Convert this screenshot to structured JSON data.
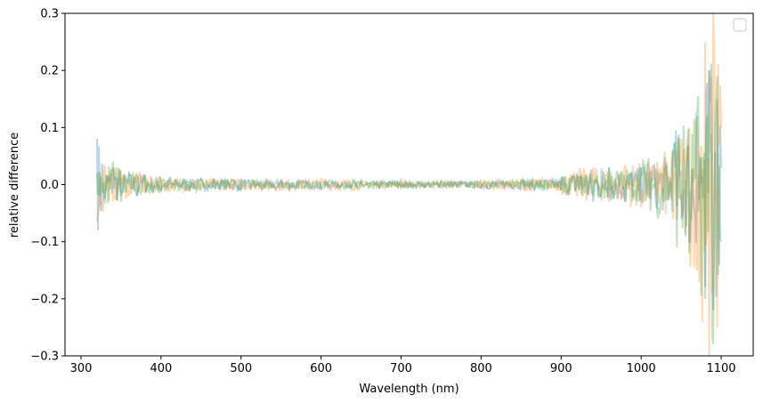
{
  "chart_data": {
    "type": "line",
    "title": "",
    "xlabel": "Wavelength (nm)",
    "ylabel": "relative difference",
    "xlim": [
      280,
      1140
    ],
    "ylim": [
      -0.3,
      0.3
    ],
    "x_ticks": [
      300,
      400,
      500,
      600,
      700,
      800,
      900,
      1000,
      1100
    ],
    "y_ticks": [
      -0.3,
      -0.2,
      -0.1,
      0.0,
      0.1,
      0.2,
      0.3
    ],
    "x_tick_labels": [
      "300",
      "400",
      "500",
      "600",
      "700",
      "800",
      "900",
      "1000",
      "1100"
    ],
    "y_tick_labels": [
      "−0.3",
      "−0.2",
      "−0.1",
      "0.0",
      "0.1",
      "0.2",
      "0.3"
    ],
    "grid": false,
    "legend": {
      "placement": "top-right",
      "entries": []
    },
    "series": [
      {
        "color": "#1f77b4",
        "opacity": 0.3,
        "x": [
          320,
          330,
          340,
          350,
          360,
          370,
          380,
          400,
          450,
          500,
          550,
          600,
          650,
          700,
          750,
          800,
          850,
          900,
          920,
          940,
          960,
          980,
          1000,
          1020,
          1040,
          1060,
          1070,
          1080,
          1085,
          1090,
          1095,
          1100
        ],
        "y": [
          0.08,
          -0.03,
          0.03,
          -0.02,
          0.02,
          -0.02,
          0.015,
          -0.01,
          0.01,
          -0.008,
          0.008,
          -0.006,
          0.006,
          -0.005,
          0.005,
          -0.006,
          0.008,
          -0.01,
          0.02,
          -0.03,
          0.03,
          -0.03,
          0.03,
          -0.04,
          0.05,
          -0.1,
          0.12,
          -0.18,
          0.2,
          -0.22,
          0.15,
          0.03
        ]
      },
      {
        "color": "#ff7f0e",
        "opacity": 0.3,
        "x": [
          320,
          330,
          340,
          350,
          360,
          370,
          380,
          400,
          450,
          500,
          550,
          600,
          650,
          700,
          750,
          800,
          850,
          900,
          920,
          940,
          960,
          980,
          1000,
          1020,
          1040,
          1060,
          1070,
          1080,
          1085,
          1090,
          1095,
          1100
        ],
        "y": [
          -0.065,
          0.03,
          -0.03,
          0.025,
          -0.02,
          0.02,
          -0.015,
          0.012,
          -0.01,
          0.01,
          -0.008,
          0.01,
          -0.006,
          0.006,
          -0.005,
          0.006,
          -0.008,
          0.012,
          -0.02,
          0.03,
          -0.03,
          0.035,
          -0.04,
          0.04,
          -0.06,
          0.1,
          -0.15,
          0.25,
          -0.3,
          0.3,
          -0.25,
          0.1
        ]
      },
      {
        "color": "#2ca02c",
        "opacity": 0.3,
        "x": [
          320,
          330,
          340,
          350,
          360,
          370,
          380,
          400,
          450,
          500,
          550,
          600,
          650,
          700,
          750,
          800,
          850,
          900,
          920,
          940,
          960,
          980,
          1000,
          1020,
          1040,
          1060,
          1070,
          1080,
          1085,
          1090,
          1095,
          1100
        ],
        "y": [
          0.02,
          -0.025,
          0.04,
          -0.03,
          0.02,
          -0.02,
          0.015,
          -0.012,
          0.01,
          -0.008,
          0.006,
          -0.008,
          0.006,
          -0.005,
          0.005,
          -0.006,
          0.006,
          -0.01,
          0.015,
          -0.02,
          0.03,
          -0.03,
          0.03,
          -0.05,
          0.06,
          -0.12,
          0.13,
          -0.2,
          0.2,
          -0.28,
          0.19,
          -0.1
        ]
      }
    ]
  }
}
